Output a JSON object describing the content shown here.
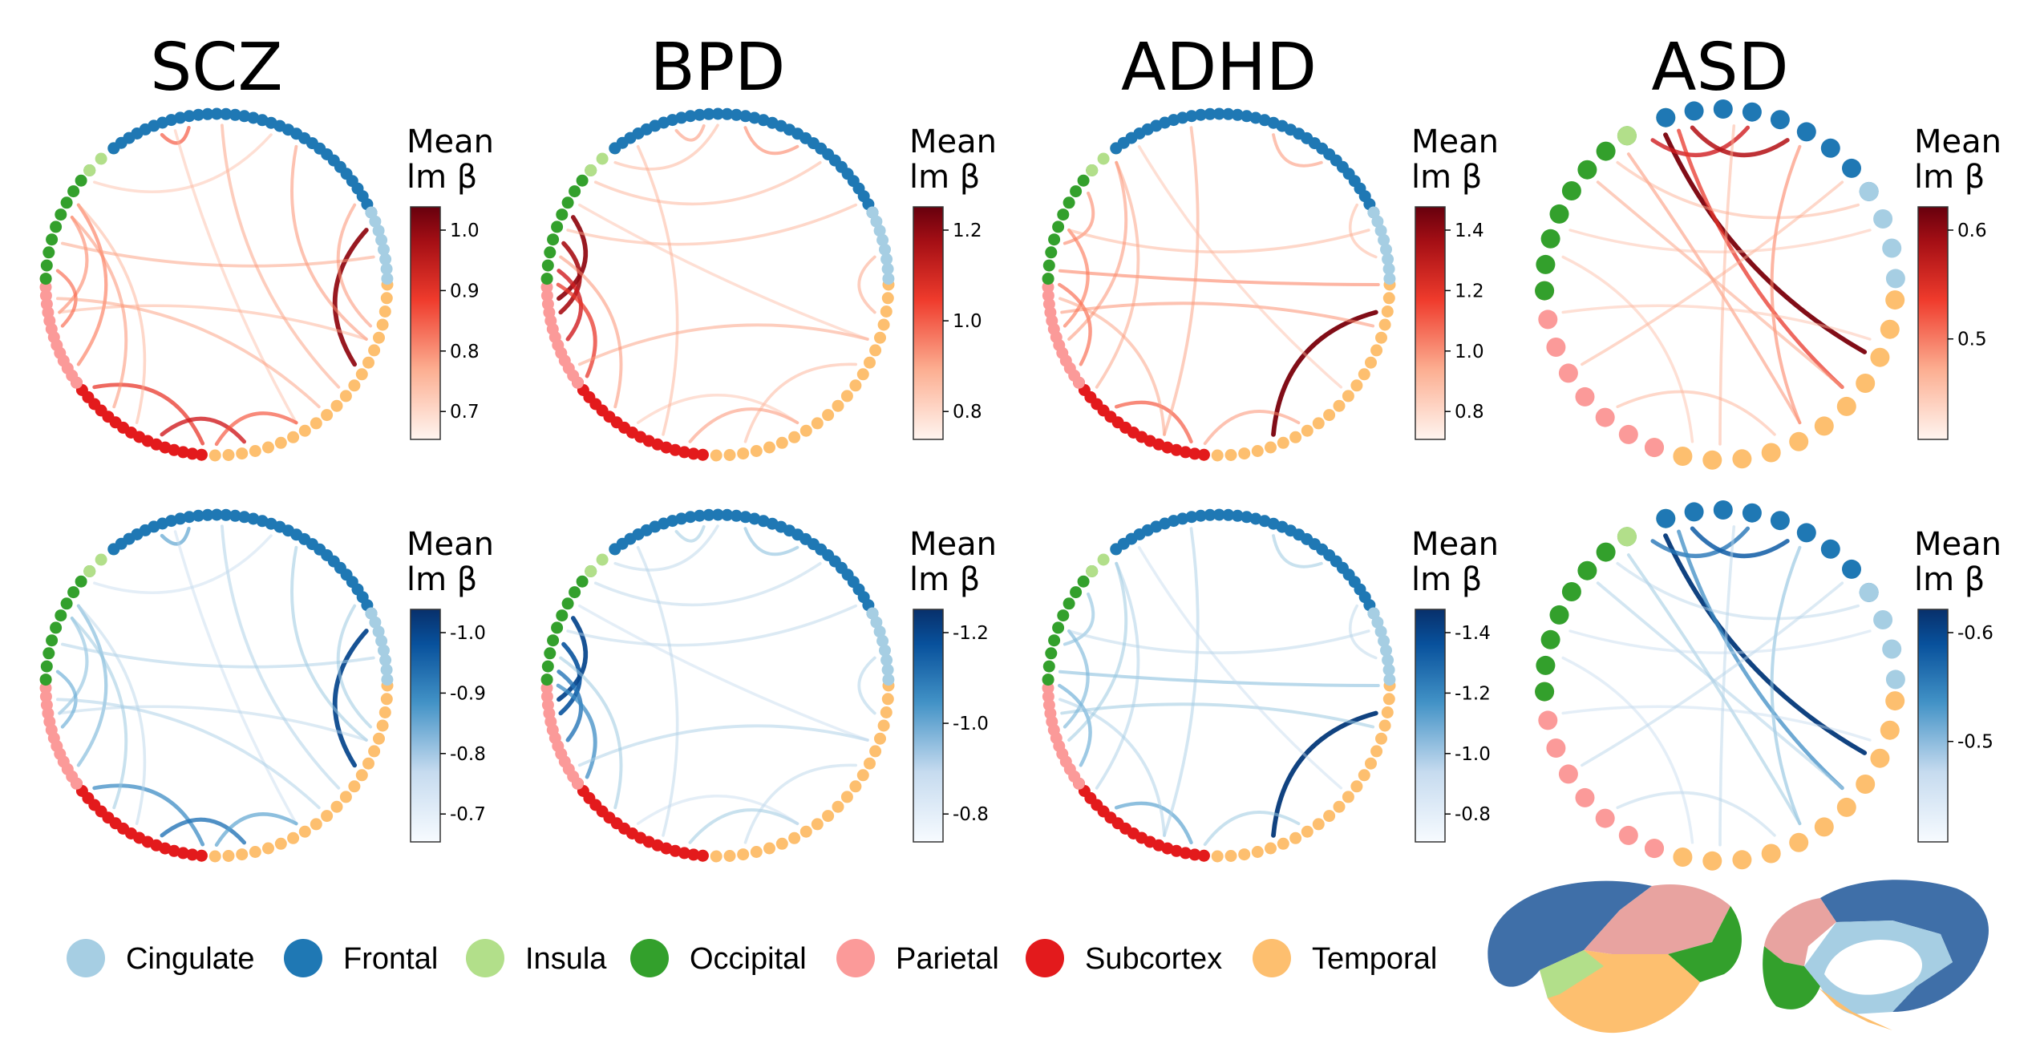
{
  "panels": [
    {
      "title": "SCZ",
      "nodes": "small"
    },
    {
      "title": "BPD",
      "nodes": "small"
    },
    {
      "title": "ADHD",
      "nodes": "small"
    },
    {
      "title": "ASD",
      "nodes": "large"
    }
  ],
  "colorbars": [
    {
      "title1": "Mean",
      "title2": "lm β",
      "scheme": "reds",
      "ticks": [
        "1.0",
        "0.9",
        "0.8",
        "0.7"
      ]
    },
    {
      "title1": "Mean",
      "title2": "lm β",
      "scheme": "reds",
      "ticks": [
        "1.2",
        "1.0",
        "0.8"
      ]
    },
    {
      "title1": "Mean",
      "title2": "lm β",
      "scheme": "reds",
      "ticks": [
        "1.4",
        "1.2",
        "1.0",
        "0.8"
      ]
    },
    {
      "title1": "Mean",
      "title2": "lm β",
      "scheme": "reds",
      "ticks": [
        "0.6",
        "0.5"
      ]
    },
    {
      "title1": "Mean",
      "title2": "lm β",
      "scheme": "blues",
      "ticks": [
        "-1.0",
        "-0.9",
        "-0.8",
        "-0.7"
      ]
    },
    {
      "title1": "Mean",
      "title2": "lm β",
      "scheme": "blues",
      "ticks": [
        "-1.2",
        "-1.0",
        "-0.8"
      ]
    },
    {
      "title1": "Mean",
      "title2": "lm β",
      "scheme": "blues",
      "ticks": [
        "-1.4",
        "-1.2",
        "-1.0",
        "-0.8"
      ]
    },
    {
      "title1": "Mean",
      "title2": "lm β",
      "scheme": "blues",
      "ticks": [
        "-0.6",
        "-0.5"
      ]
    }
  ],
  "legend": [
    {
      "label": "Cingulate",
      "color": "#a6cee3"
    },
    {
      "label": "Frontal",
      "color": "#1f78b4"
    },
    {
      "label": "Insula",
      "color": "#b2df8a"
    },
    {
      "label": "Occipital",
      "color": "#33a02c"
    },
    {
      "label": "Parietal",
      "color": "#fb9a99"
    },
    {
      "label": "Subcortex",
      "color": "#e31a1c"
    },
    {
      "label": "Temporal",
      "color": "#fdbf6f"
    }
  ],
  "colors": {
    "cingulate": "#a6cee3",
    "frontal": "#1f78b4",
    "insula": "#b2df8a",
    "occipital": "#33a02c",
    "parietal": "#fb9a99",
    "subcortex": "#e31a1c",
    "temporal": "#fdbf6f",
    "brain_frontal": "#3f6fa8",
    "brain_parietal": "#e8a3a0",
    "red_dark": "#67000d",
    "blue_dark": "#08306b"
  }
}
